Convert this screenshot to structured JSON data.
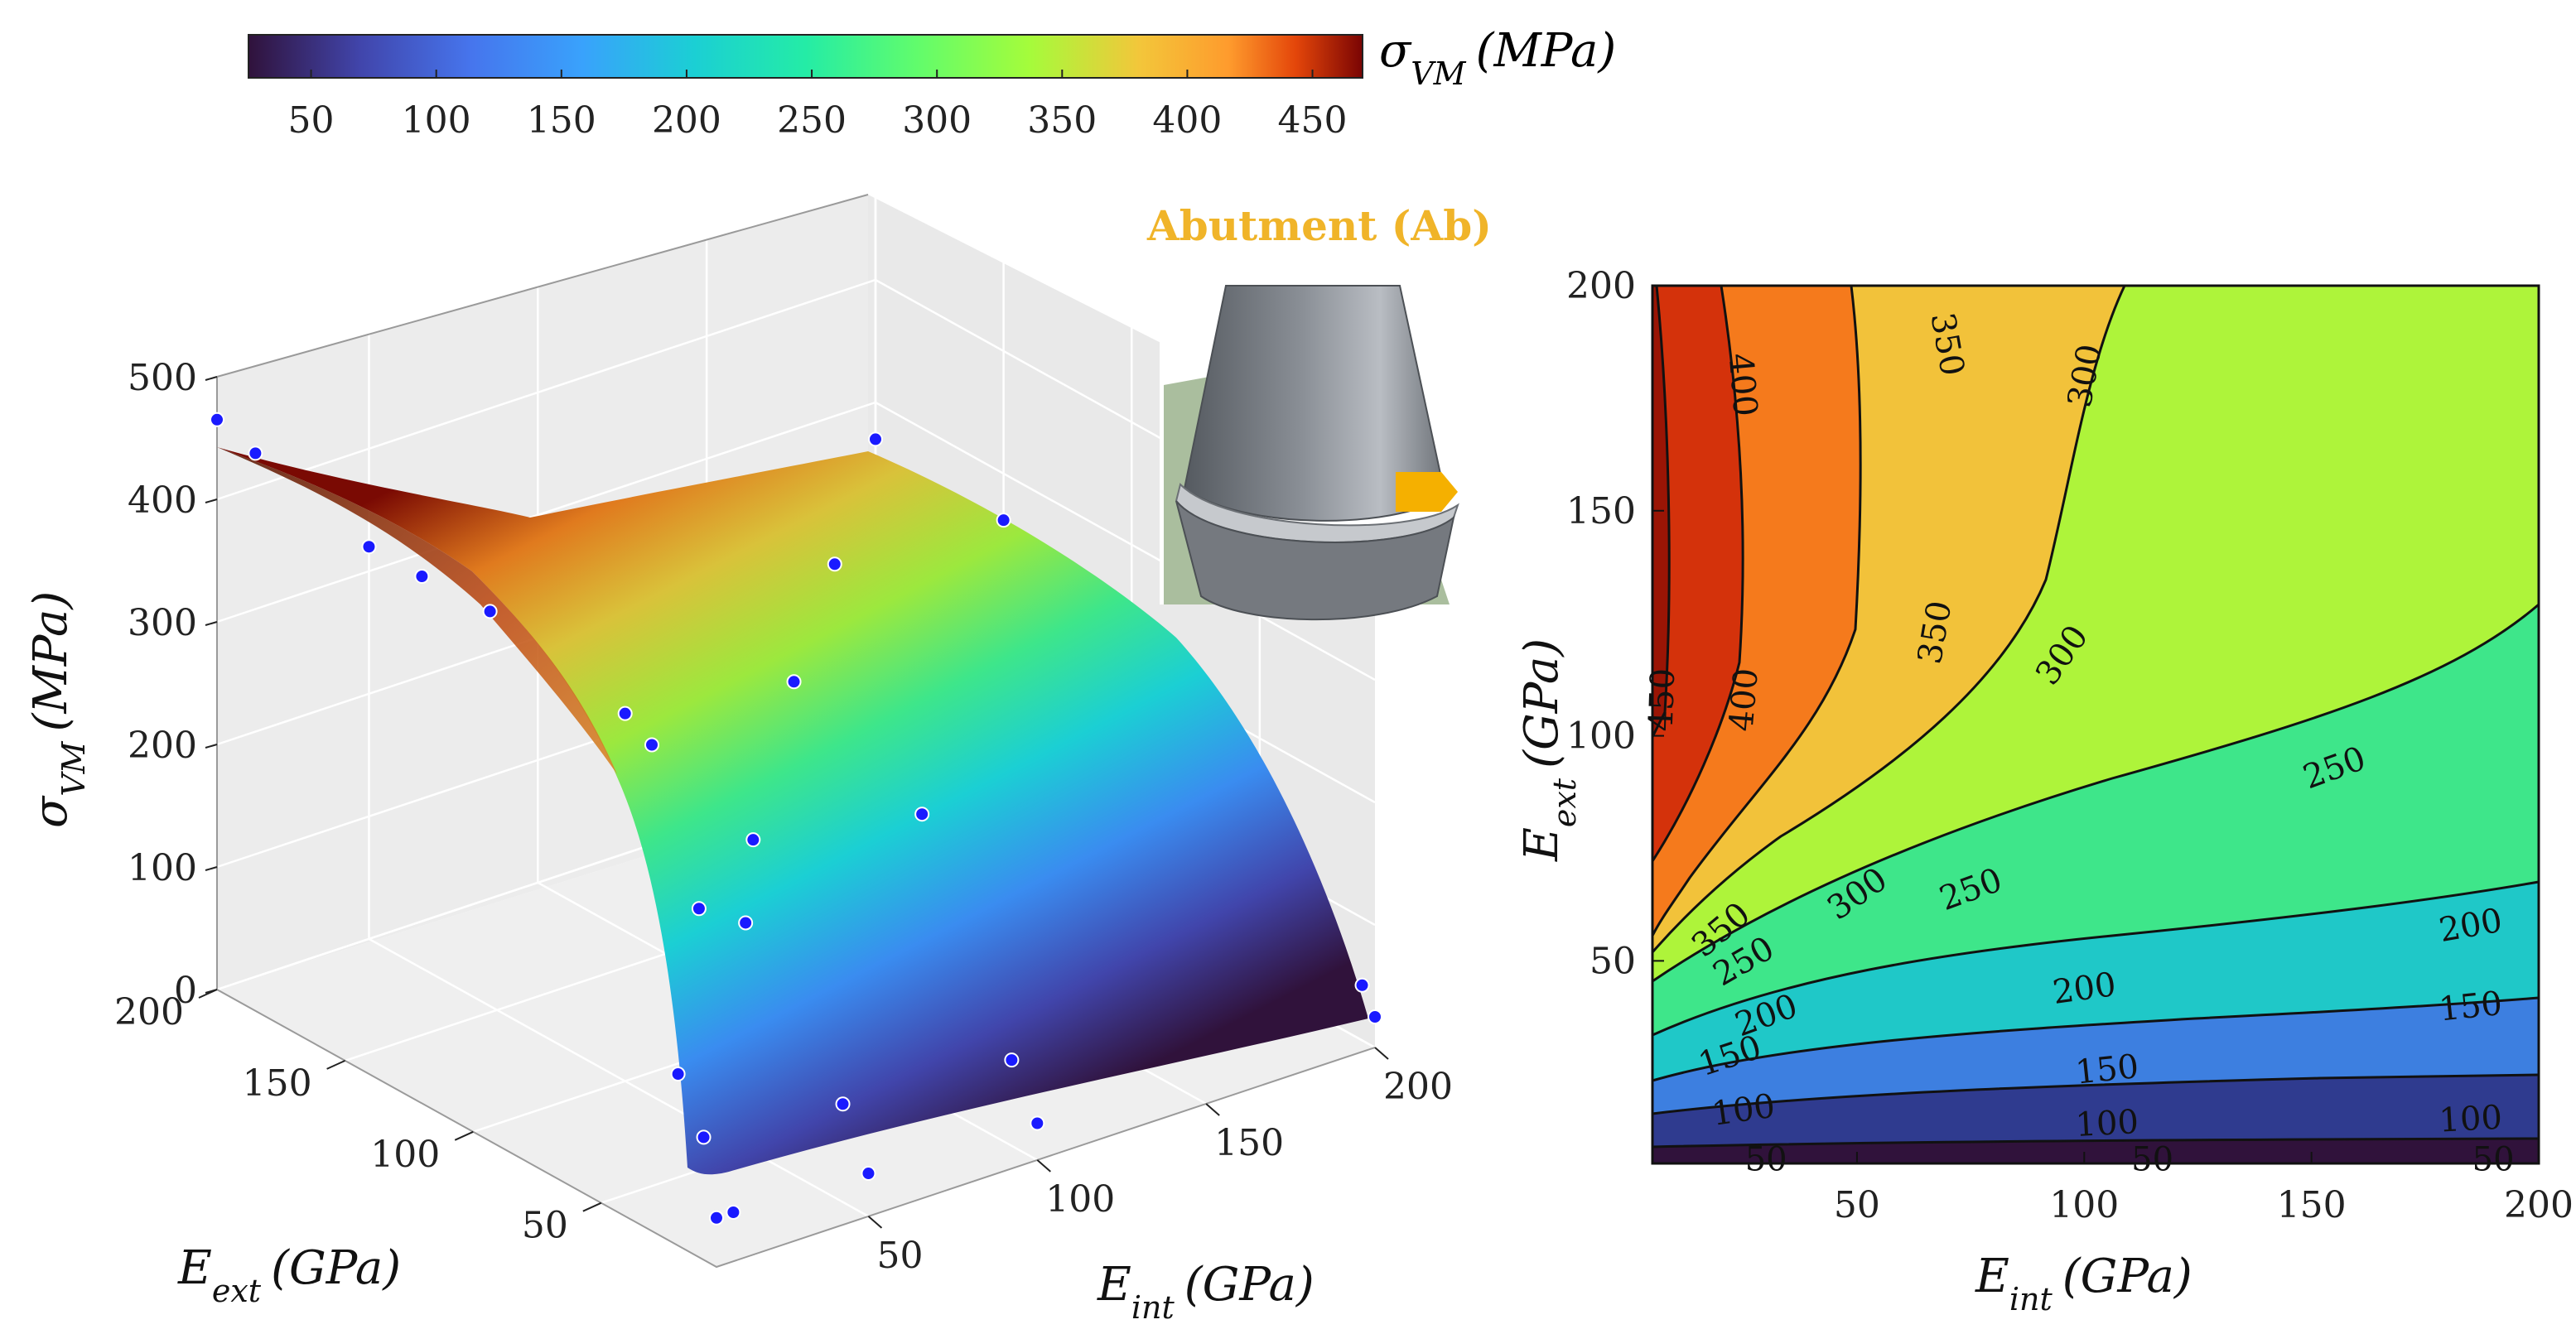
{
  "colorbar": {
    "label": "σ_VM (MPa)",
    "label_main": "σ",
    "label_sub": "VM",
    "label_unit": "(MPa)",
    "ticks": [
      "50",
      "100",
      "150",
      "200",
      "250",
      "300",
      "350",
      "400",
      "450"
    ],
    "range": [
      25,
      470
    ]
  },
  "inset": {
    "title": "Abutment (Ab)",
    "title_color": "#f0b429",
    "marker_color": "#f5b000"
  },
  "chart_data": [
    {
      "type": "surface3d",
      "title": "",
      "xlabel": "E_int (GPa)",
      "xlabel_main": "E",
      "xlabel_sub": "int",
      "xlabel_unit": "(GPa)",
      "ylabel": "E_ext (GPa)",
      "ylabel_main": "E",
      "ylabel_sub": "ext",
      "ylabel_unit": "(GPa)",
      "zlabel": "σ_VM (MPa)",
      "zlabel_main": "σ",
      "zlabel_sub": "VM",
      "zlabel_unit": "(MPa)",
      "xticks": [
        "50",
        "100",
        "150",
        "200"
      ],
      "yticks": [
        "50",
        "100",
        "150",
        "200"
      ],
      "zticks": [
        "0",
        "100",
        "200",
        "300",
        "400",
        "500"
      ],
      "xlim": [
        5,
        200
      ],
      "ylim": [
        5,
        200
      ],
      "zlim": [
        0,
        500
      ],
      "colormap": "turbo",
      "grid": true,
      "sample_points": [
        {
          "x": 5,
          "y": 200,
          "z": 465
        },
        {
          "x": 5,
          "y": 185,
          "z": 455
        },
        {
          "x": 50,
          "y": 200,
          "z": 320
        },
        {
          "x": 200,
          "y": 200,
          "z": 270
        },
        {
          "x": 5,
          "y": 120,
          "z": 430
        },
        {
          "x": 10,
          "y": 100,
          "z": 420
        },
        {
          "x": 20,
          "y": 50,
          "z": 360
        },
        {
          "x": 15,
          "y": 25,
          "z": 260
        },
        {
          "x": 25,
          "y": 20,
          "z": 245
        },
        {
          "x": 50,
          "y": 100,
          "z": 300
        },
        {
          "x": 100,
          "y": 100,
          "z": 280
        },
        {
          "x": 50,
          "y": 50,
          "z": 255
        },
        {
          "x": 100,
          "y": 50,
          "z": 230
        },
        {
          "x": 150,
          "y": 150,
          "z": 272
        },
        {
          "x": 200,
          "y": 150,
          "z": 262
        },
        {
          "x": 200,
          "y": 10,
          "z": 45
        },
        {
          "x": 200,
          "y": 5,
          "z": 25
        },
        {
          "x": 5,
          "y": 20,
          "z": 140
        },
        {
          "x": 5,
          "y": 10,
          "z": 100
        },
        {
          "x": 5,
          "y": 5,
          "z": 40
        },
        {
          "x": 10,
          "y": 5,
          "z": 40
        },
        {
          "x": 50,
          "y": 5,
          "z": 35
        },
        {
          "x": 50,
          "y": 15,
          "z": 80
        },
        {
          "x": 100,
          "y": 15,
          "z": 70
        },
        {
          "x": 100,
          "y": 5,
          "z": 30
        }
      ]
    },
    {
      "type": "contour",
      "title": "",
      "xlabel": "E_int (GPa)",
      "xlabel_main": "E",
      "xlabel_sub": "int",
      "xlabel_unit": "(GPa)",
      "ylabel": "E_ext (GPa)",
      "ylabel_main": "E",
      "ylabel_sub": "ext",
      "ylabel_unit": "(GPa)",
      "xticks": [
        "50",
        "100",
        "150",
        "200"
      ],
      "yticks": [
        "50",
        "100",
        "150",
        "200"
      ],
      "xlim": [
        5,
        200
      ],
      "ylim": [
        5,
        200
      ],
      "levels": [
        50,
        100,
        150,
        200,
        250,
        300,
        350,
        400,
        450
      ],
      "level_labels": [
        "50",
        "100",
        "150",
        "200",
        "250",
        "300",
        "350",
        "400",
        "450"
      ],
      "level_colors": [
        "#30123b",
        "#2f3b8f",
        "#3d7fe0",
        "#1fc8c8",
        "#3ee68a",
        "#aef43a",
        "#f2c23a",
        "#f57a1c",
        "#d4320b",
        "#9a1505"
      ]
    }
  ]
}
